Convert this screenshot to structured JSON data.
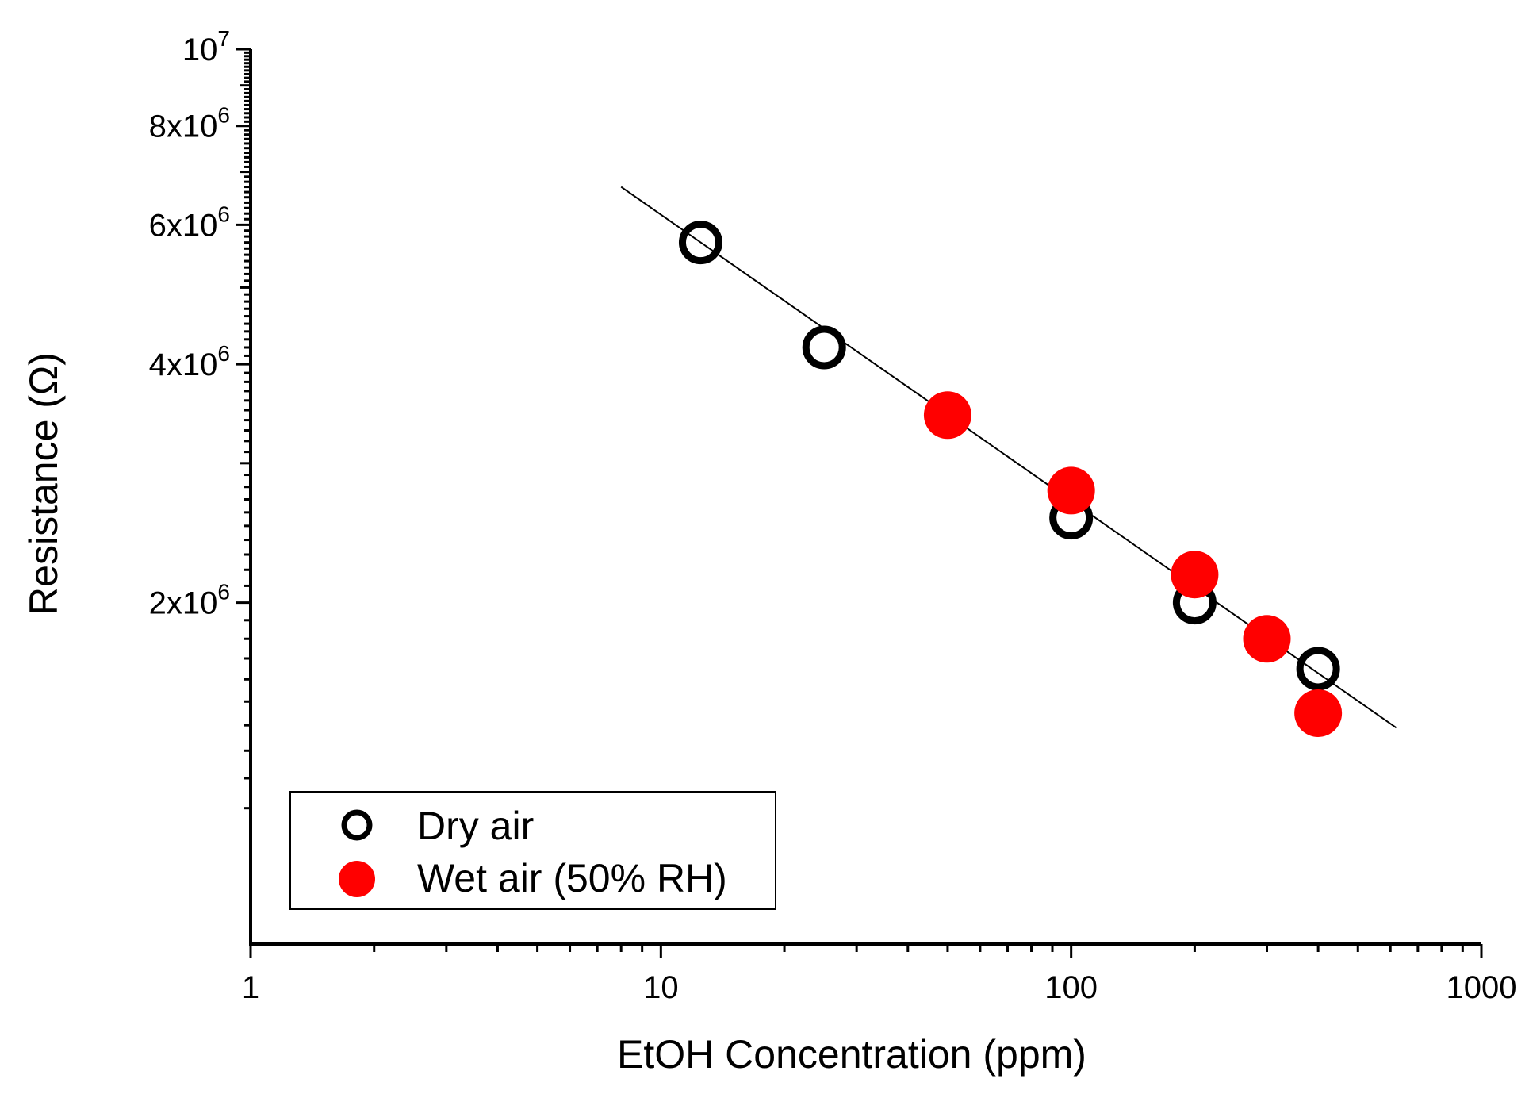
{
  "chart_data": {
    "type": "scatter",
    "xlabel": "EtOH Concentration (ppm)",
    "ylabel": "Resistance (Ω)",
    "x_scale": "log",
    "y_scale": "log",
    "xlim": [
      1,
      1000
    ],
    "ylim": [
      1000000,
      10000000
    ],
    "x_ticks": [
      {
        "value": 1,
        "label": "1"
      },
      {
        "value": 10,
        "label": "10"
      },
      {
        "value": 100,
        "label": "100"
      },
      {
        "value": 1000,
        "label": "1000"
      }
    ],
    "y_ticks": [
      {
        "value": 2000000,
        "mantissa": "2x10",
        "exponent": "6"
      },
      {
        "value": 4000000,
        "mantissa": "4x10",
        "exponent": "6"
      },
      {
        "value": 6000000,
        "mantissa": "6x10",
        "exponent": "6"
      },
      {
        "value": 8000000,
        "mantissa": "8x10",
        "exponent": "6"
      },
      {
        "value": 10000000,
        "mantissa": "10",
        "exponent": "7"
      }
    ],
    "series": [
      {
        "name": "Dry air",
        "marker": "open-circle",
        "color": "#000000",
        "points": [
          [
            12.5,
            5700000
          ],
          [
            25,
            4200000
          ],
          [
            100,
            2560000
          ],
          [
            200,
            2000000
          ],
          [
            400,
            1650000
          ]
        ]
      },
      {
        "name": "Wet air (50% RH)",
        "marker": "filled-circle",
        "color": "#ff0000",
        "points": [
          [
            50,
            3450000
          ],
          [
            100,
            2770000
          ],
          [
            200,
            2170000
          ],
          [
            300,
            1800000
          ],
          [
            400,
            1450000
          ]
        ]
      }
    ],
    "fit_line": {
      "color": "#000000",
      "x_range": [
        8,
        620
      ],
      "y_range": [
        6700000,
        1390000
      ]
    },
    "legend": {
      "position": "bottom-left"
    }
  }
}
